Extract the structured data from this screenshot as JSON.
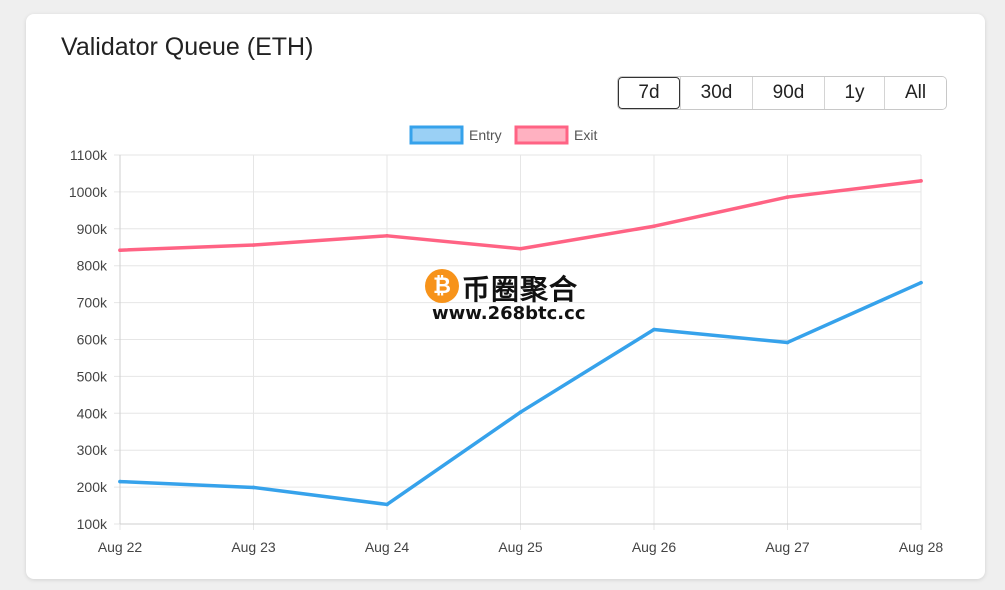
{
  "card": {
    "title": "Validator Queue (ETH)"
  },
  "range": {
    "options": [
      {
        "label": "7d",
        "active": true
      },
      {
        "label": "30d",
        "active": false
      },
      {
        "label": "90d",
        "active": false
      },
      {
        "label": "1y",
        "active": false
      },
      {
        "label": "All",
        "active": false
      }
    ]
  },
  "watermark": {
    "coin_glyph": "₿",
    "name": "币圈聚合",
    "url": "www.268btc.cc"
  },
  "chart_data": {
    "type": "line",
    "categories": [
      "Aug 22",
      "Aug 23",
      "Aug 24",
      "Aug 25",
      "Aug 26",
      "Aug 27",
      "Aug 28"
    ],
    "series": [
      {
        "name": "Entry",
        "color": "#36a2eb",
        "fill": "#9ad0f5",
        "values": [
          215000,
          199000,
          153000,
          403000,
          627000,
          592000,
          754000
        ]
      },
      {
        "name": "Exit",
        "color": "#ff6384",
        "fill": "#ffb1c1",
        "values": [
          842000,
          856000,
          881000,
          846000,
          907000,
          986000,
          1030000
        ]
      }
    ],
    "y_ticks": [
      "100k",
      "200k",
      "300k",
      "400k",
      "500k",
      "600k",
      "700k",
      "800k",
      "900k",
      "1000k",
      "1100k"
    ],
    "ylim": [
      100000,
      1100000
    ],
    "grid": true,
    "legend_position": "top-center",
    "title": "",
    "xlabel": "",
    "ylabel": ""
  }
}
